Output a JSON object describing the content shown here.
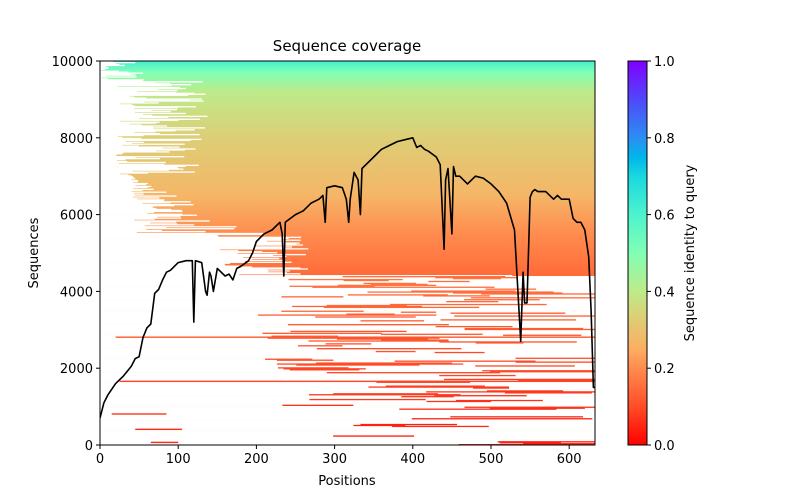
{
  "chart_data": {
    "type": "heatmap",
    "title": "Sequence coverage",
    "xlabel": "Positions",
    "ylabel": "Sequences",
    "xlim": [
      0,
      633
    ],
    "ylim": [
      0,
      10000
    ],
    "xticks": [
      0,
      100,
      200,
      300,
      400,
      500,
      600
    ],
    "yticks": [
      0,
      2000,
      4000,
      6000,
      8000,
      10000
    ],
    "grid": false,
    "colorbar": {
      "label": "Sequence identity to query",
      "range": [
        0.0,
        1.0
      ],
      "ticks": [
        "0.0",
        "0.2",
        "0.4",
        "0.6",
        "0.8",
        "1.0"
      ],
      "colormap": "rainbow_r",
      "stops": [
        {
          "value": 0.0,
          "color": "#ff0000"
        },
        {
          "value": 0.1,
          "color": "#ff4d27"
        },
        {
          "value": 0.2,
          "color": "#ff8c4f"
        },
        {
          "value": 0.25,
          "color": "#fdae61"
        },
        {
          "value": 0.3,
          "color": "#e8c270"
        },
        {
          "value": 0.35,
          "color": "#d6d67a"
        },
        {
          "value": 0.4,
          "color": "#bdeb8a"
        },
        {
          "value": 0.5,
          "color": "#80ffb4"
        },
        {
          "value": 0.6,
          "color": "#4df3ce"
        },
        {
          "value": 0.7,
          "color": "#1ad8df"
        },
        {
          "value": 0.75,
          "color": "#00b5eb"
        },
        {
          "value": 0.8,
          "color": "#2c8ef2"
        },
        {
          "value": 0.9,
          "color": "#5048fa"
        },
        {
          "value": 1.0,
          "color": "#8000ff"
        }
      ]
    },
    "identity_by_sequence_rank": [
      {
        "sequences": 0,
        "identity": 0.02
      },
      {
        "sequences": 2000,
        "identity": 0.05
      },
      {
        "sequences": 3000,
        "identity": 0.1
      },
      {
        "sequences": 4500,
        "identity": 0.15
      },
      {
        "sequences": 5500,
        "identity": 0.2
      },
      {
        "sequences": 6500,
        "identity": 0.27
      },
      {
        "sequences": 8000,
        "identity": 0.33
      },
      {
        "sequences": 9200,
        "identity": 0.4
      },
      {
        "sequences": 9700,
        "identity": 0.5
      },
      {
        "sequences": 10000,
        "identity": 0.62
      }
    ],
    "coverage_line": {
      "name": "coverage",
      "color": "#000000",
      "x": [
        0,
        5,
        10,
        20,
        30,
        40,
        45,
        50,
        55,
        60,
        65,
        70,
        75,
        80,
        85,
        90,
        95,
        100,
        110,
        118,
        120,
        122,
        130,
        135,
        137,
        140,
        142,
        145,
        150,
        160,
        165,
        170,
        175,
        180,
        190,
        195,
        200,
        205,
        210,
        220,
        230,
        233,
        235,
        237,
        240,
        250,
        260,
        270,
        280,
        285,
        288,
        290,
        300,
        310,
        315,
        318,
        320,
        325,
        330,
        333,
        335,
        340,
        350,
        360,
        370,
        380,
        390,
        400,
        405,
        410,
        415,
        420,
        430,
        435,
        440,
        442,
        445,
        450,
        452,
        455,
        460,
        470,
        480,
        490,
        500,
        510,
        520,
        530,
        538,
        541,
        543,
        546,
        550,
        553,
        556,
        560,
        570,
        580,
        585,
        590,
        600,
        605,
        610,
        615,
        620,
        625,
        628,
        631,
        633
      ],
      "y": [
        700,
        1100,
        1300,
        1600,
        1800,
        2050,
        2250,
        2300,
        2800,
        3050,
        3150,
        3950,
        4050,
        4300,
        4500,
        4550,
        4650,
        4750,
        4800,
        4800,
        3200,
        4800,
        4750,
        4000,
        3900,
        4500,
        4400,
        4000,
        4600,
        4400,
        4450,
        4300,
        4600,
        4650,
        4800,
        5000,
        5300,
        5400,
        5500,
        5600,
        5800,
        5500,
        4400,
        5800,
        5850,
        6000,
        6100,
        6300,
        6400,
        6500,
        5800,
        6700,
        6750,
        6700,
        6400,
        5800,
        6400,
        7100,
        6900,
        6000,
        7200,
        7300,
        7500,
        7700,
        7800,
        7900,
        7950,
        8000,
        7750,
        7800,
        7700,
        7650,
        7500,
        7300,
        5100,
        6900,
        7200,
        5500,
        7250,
        7000,
        7000,
        6800,
        7000,
        6950,
        6800,
        6600,
        6300,
        5600,
        2700,
        4500,
        3700,
        3700,
        6450,
        6600,
        6650,
        6600,
        6600,
        6400,
        6500,
        6400,
        6400,
        5900,
        5800,
        5800,
        5600,
        4900,
        3500,
        1500,
        1500
      ]
    }
  }
}
